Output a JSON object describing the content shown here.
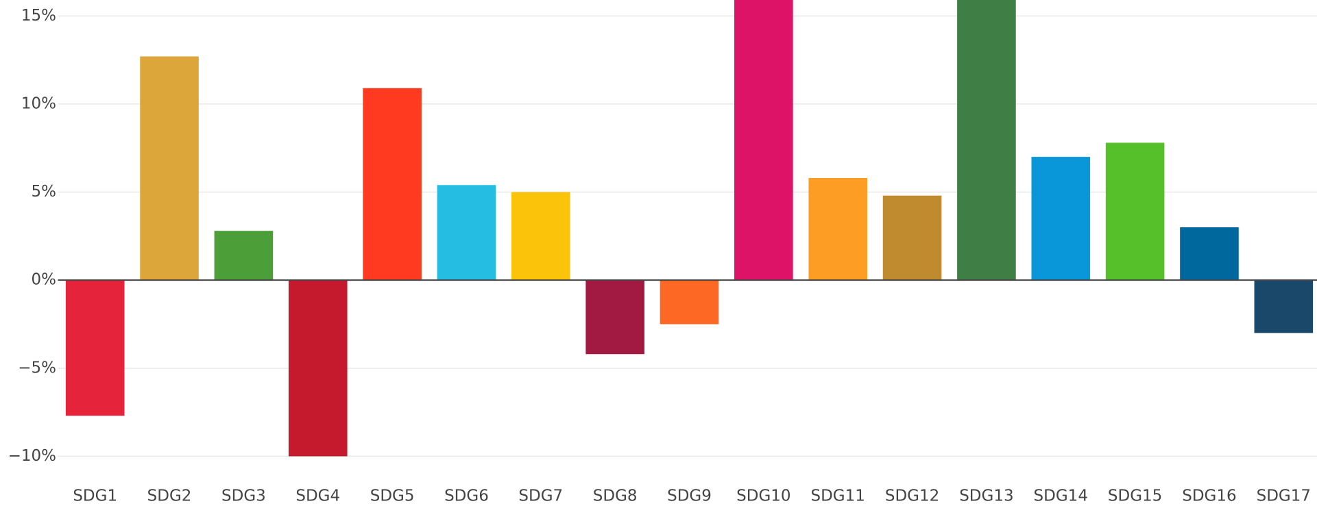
{
  "chart_data": {
    "type": "bar",
    "categories": [
      "SDG1",
      "SDG2",
      "SDG3",
      "SDG4",
      "SDG5",
      "SDG6",
      "SDG7",
      "SDG8",
      "SDG9",
      "SDG10",
      "SDG11",
      "SDG12",
      "SDG13",
      "SDG14",
      "SDG15",
      "SDG16",
      "SDG17"
    ],
    "values": [
      -7.7,
      12.7,
      2.8,
      -10,
      10.9,
      5.4,
      5.0,
      -4.2,
      -2.5,
      17,
      5.8,
      4.8,
      17,
      7.0,
      7.8,
      3.0,
      -3.0
    ],
    "colors": [
      "#e5243b",
      "#dda63a",
      "#4c9f38",
      "#c5192d",
      "#ff3a21",
      "#26bde2",
      "#fcc30b",
      "#a21942",
      "#fd6925",
      "#dd1367",
      "#fd9d24",
      "#bf8b2e",
      "#3f7e44",
      "#0a97d9",
      "#56c02b",
      "#00689d",
      "#19486a"
    ],
    "ylim": [
      -10.76,
      15.905
    ],
    "yticks": [
      {
        "value": -10,
        "label": "−10%"
      },
      {
        "value": -5,
        "label": "−5%"
      },
      {
        "value": 0,
        "label": "0%"
      },
      {
        "value": 5,
        "label": "5%"
      },
      {
        "value": 10,
        "label": "10%"
      },
      {
        "value": 15,
        "label": "15%"
      }
    ],
    "grid": true
  }
}
